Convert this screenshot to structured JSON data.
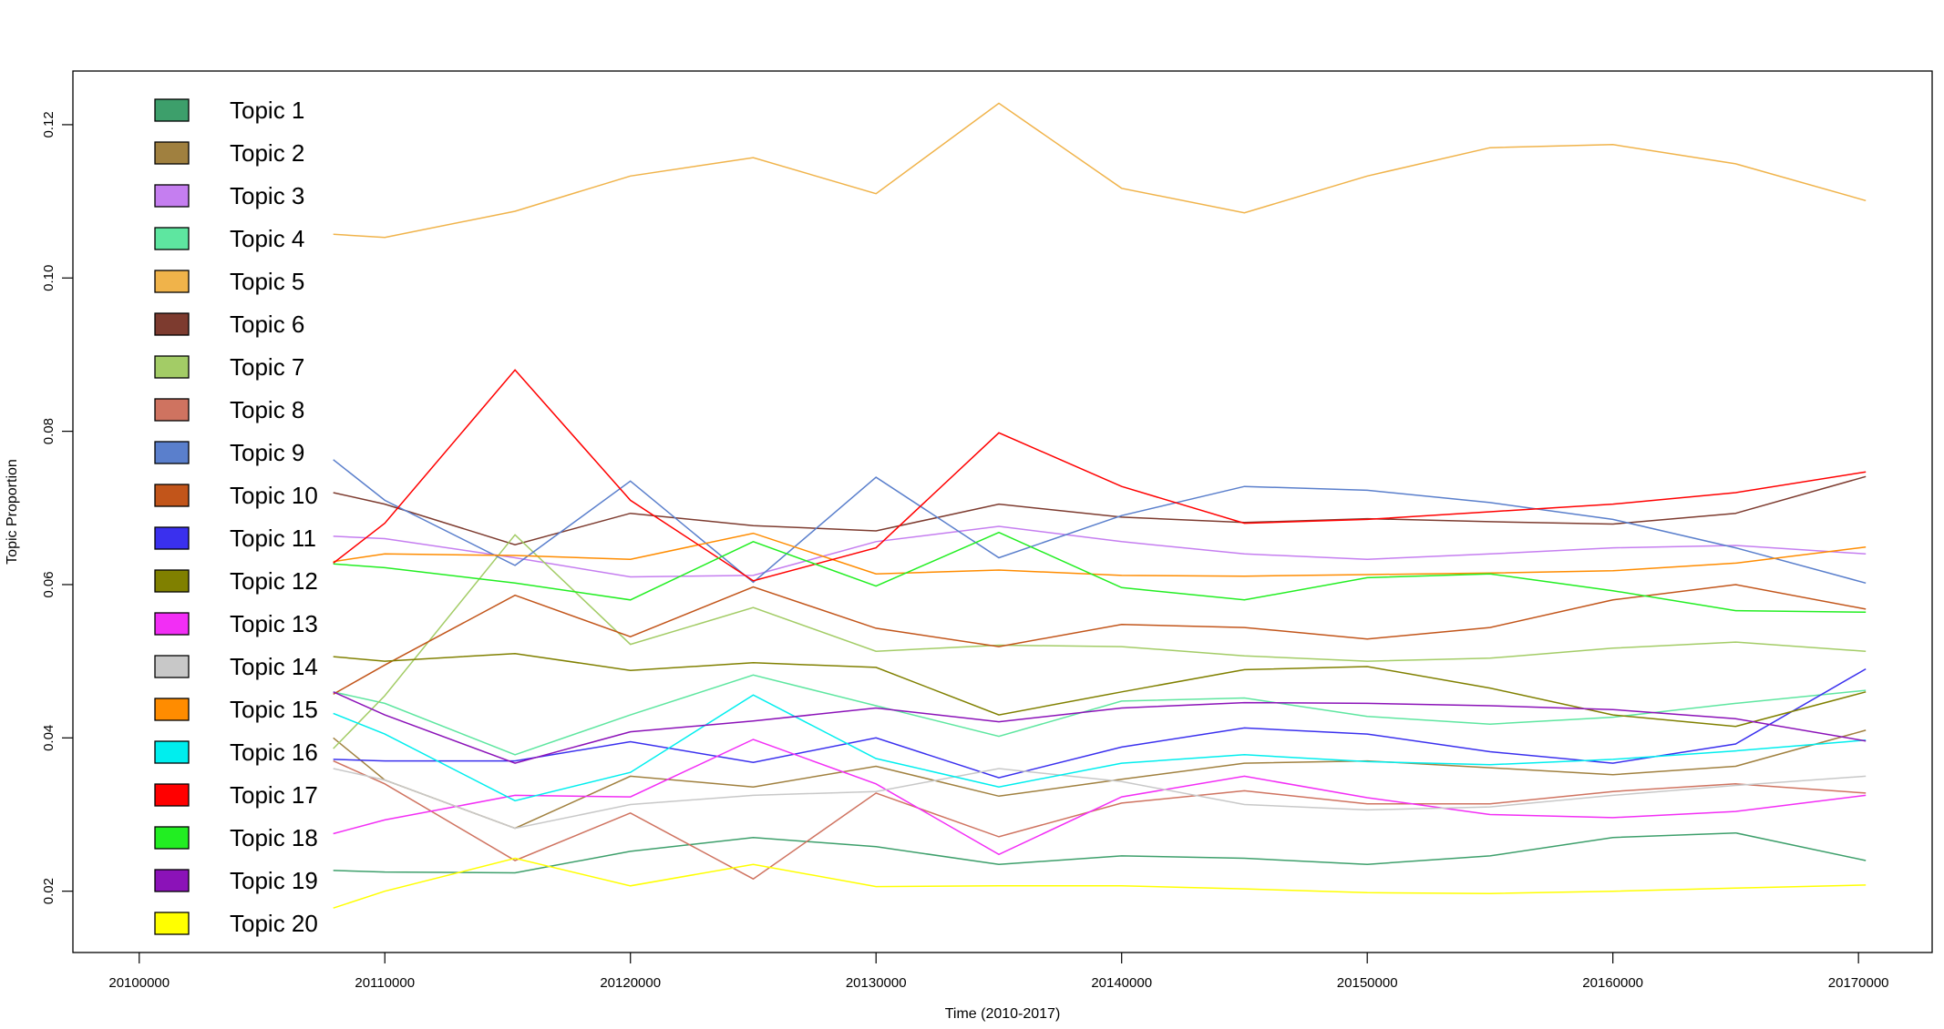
{
  "chart_data": {
    "type": "line",
    "title": "",
    "xlabel": "Time (2010-2017)",
    "ylabel": "Topic Proportion",
    "xlim": [
      20097300,
      20173000
    ],
    "ylim": [
      0.012,
      0.127
    ],
    "xticks": [
      20100000,
      20110000,
      20120000,
      20130000,
      20140000,
      20150000,
      20160000,
      20170000
    ],
    "xtick_labels": [
      "20100000",
      "20110000",
      "20120000",
      "20130000",
      "20140000",
      "20150000",
      "20160000",
      "20170000"
    ],
    "yticks": [
      0.02,
      0.04,
      0.06,
      0.08,
      0.1,
      0.12
    ],
    "ytick_labels": [
      "0.02",
      "0.04",
      "0.06",
      "0.08",
      "0.10",
      "0.12"
    ],
    "grid": false,
    "legend_position": "top-left",
    "x": [
      20107900,
      20110000,
      20115300,
      20120000,
      20125000,
      20130000,
      20135000,
      20140000,
      20145000,
      20150000,
      20155000,
      20160000,
      20165000,
      20170300
    ],
    "series": [
      {
        "name": "Topic 1",
        "color": "#3d9f6b",
        "values": [
          0.0227,
          0.0225,
          0.0224,
          0.0252,
          0.027,
          0.0258,
          0.0235,
          0.0246,
          0.0243,
          0.0235,
          0.0246,
          0.027,
          0.0276,
          0.024
        ]
      },
      {
        "name": "Topic 2",
        "color": "#a0803f",
        "values": [
          0.04,
          0.0345,
          0.0282,
          0.035,
          0.0336,
          0.0363,
          0.0324,
          0.0346,
          0.0367,
          0.037,
          0.0361,
          0.0352,
          0.0363,
          0.041
        ]
      },
      {
        "name": "Topic 3",
        "color": "#c57ef0",
        "values": [
          0.0663,
          0.066,
          0.0635,
          0.061,
          0.0612,
          0.0656,
          0.0676,
          0.0656,
          0.064,
          0.0633,
          0.064,
          0.0648,
          0.0651,
          0.064
        ]
      },
      {
        "name": "Topic 4",
        "color": "#5ee6a0",
        "values": [
          0.046,
          0.0445,
          0.0378,
          0.043,
          0.0482,
          0.0442,
          0.0402,
          0.0448,
          0.0452,
          0.0428,
          0.0418,
          0.0427,
          0.0445,
          0.0462
        ]
      },
      {
        "name": "Topic 5",
        "color": "#f0b34a",
        "values": [
          0.1057,
          0.1053,
          0.1087,
          0.1133,
          0.1157,
          0.111,
          0.1228,
          0.1117,
          0.1085,
          0.1133,
          0.117,
          0.1174,
          0.1149,
          0.1101
        ]
      },
      {
        "name": "Topic 6",
        "color": "#7d3b2f",
        "values": [
          0.072,
          0.0705,
          0.0652,
          0.0693,
          0.0677,
          0.067,
          0.0705,
          0.0688,
          0.0681,
          0.0686,
          0.0682,
          0.0679,
          0.0693,
          0.0741
        ]
      },
      {
        "name": "Topic 7",
        "color": "#a3cc66",
        "values": [
          0.0386,
          0.0455,
          0.0665,
          0.0522,
          0.057,
          0.0513,
          0.0521,
          0.0519,
          0.0507,
          0.05,
          0.0504,
          0.0517,
          0.0525,
          0.0513
        ]
      },
      {
        "name": "Topic 8",
        "color": "#cf7360",
        "values": [
          0.037,
          0.034,
          0.024,
          0.0302,
          0.0216,
          0.0328,
          0.0271,
          0.0315,
          0.0331,
          0.0314,
          0.0314,
          0.033,
          0.034,
          0.0328
        ]
      },
      {
        "name": "Topic 9",
        "color": "#5a7fcc",
        "values": [
          0.0763,
          0.071,
          0.0625,
          0.0735,
          0.0603,
          0.074,
          0.0635,
          0.069,
          0.0728,
          0.0723,
          0.0707,
          0.0685,
          0.0648,
          0.0602
        ]
      },
      {
        "name": "Topic 10",
        "color": "#c2551a",
        "values": [
          0.0457,
          0.0495,
          0.0586,
          0.0532,
          0.0597,
          0.0543,
          0.0519,
          0.0548,
          0.0544,
          0.0529,
          0.0544,
          0.058,
          0.06,
          0.0568
        ]
      },
      {
        "name": "Topic 11",
        "color": "#3a30ee",
        "values": [
          0.0372,
          0.037,
          0.037,
          0.0395,
          0.0368,
          0.04,
          0.0348,
          0.0388,
          0.0413,
          0.0405,
          0.0382,
          0.0367,
          0.0392,
          0.049
        ]
      },
      {
        "name": "Topic 12",
        "color": "#808000",
        "values": [
          0.0506,
          0.05,
          0.051,
          0.0488,
          0.0498,
          0.0492,
          0.043,
          0.046,
          0.0489,
          0.0493,
          0.0465,
          0.043,
          0.0415,
          0.046
        ]
      },
      {
        "name": "Topic 13",
        "color": "#f22ef5",
        "values": [
          0.0275,
          0.0293,
          0.0325,
          0.0323,
          0.0398,
          0.034,
          0.0248,
          0.0323,
          0.035,
          0.0322,
          0.03,
          0.0296,
          0.0304,
          0.0325
        ]
      },
      {
        "name": "Topic 14",
        "color": "#c8c8c8",
        "values": [
          0.036,
          0.0345,
          0.0282,
          0.0313,
          0.0325,
          0.033,
          0.036,
          0.0343,
          0.0313,
          0.0306,
          0.031,
          0.0325,
          0.0338,
          0.035
        ]
      },
      {
        "name": "Topic 15",
        "color": "#ff8c00",
        "values": [
          0.063,
          0.064,
          0.0638,
          0.0633,
          0.0667,
          0.0614,
          0.0619,
          0.0612,
          0.0611,
          0.0613,
          0.0615,
          0.0618,
          0.0628,
          0.0649
        ]
      },
      {
        "name": "Topic 16",
        "color": "#00eeee",
        "values": [
          0.0432,
          0.0405,
          0.0318,
          0.0355,
          0.0456,
          0.0373,
          0.0336,
          0.0367,
          0.0378,
          0.0369,
          0.0365,
          0.0372,
          0.0383,
          0.0397
        ]
      },
      {
        "name": "Topic 17",
        "color": "#ff0000",
        "values": [
          0.0628,
          0.068,
          0.088,
          0.071,
          0.0605,
          0.0648,
          0.0798,
          0.0728,
          0.068,
          0.0685,
          0.0695,
          0.0705,
          0.072,
          0.0747
        ]
      },
      {
        "name": "Topic 18",
        "color": "#22ee22",
        "values": [
          0.0627,
          0.0622,
          0.0602,
          0.058,
          0.0656,
          0.0598,
          0.0668,
          0.0596,
          0.058,
          0.0609,
          0.0614,
          0.0592,
          0.0566,
          0.0564
        ]
      },
      {
        "name": "Topic 19",
        "color": "#8b12b8",
        "values": [
          0.046,
          0.043,
          0.0367,
          0.0408,
          0.0422,
          0.0439,
          0.0421,
          0.0439,
          0.0446,
          0.0445,
          0.0442,
          0.0437,
          0.0425,
          0.0396
        ]
      },
      {
        "name": "Topic 20",
        "color": "#ffff00",
        "values": [
          0.0178,
          0.02,
          0.0243,
          0.0207,
          0.0235,
          0.0206,
          0.0207,
          0.0207,
          0.0203,
          0.0198,
          0.0197,
          0.02,
          0.0204,
          0.0208
        ]
      }
    ]
  }
}
